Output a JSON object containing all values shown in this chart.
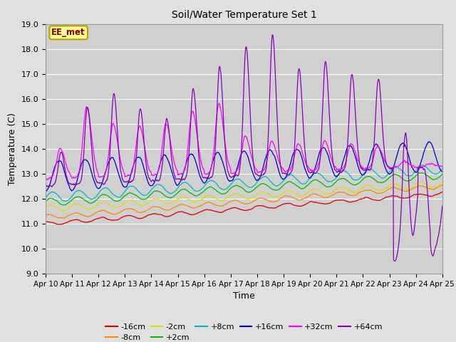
{
  "title": "Soil/Water Temperature Set 1",
  "xlabel": "Time",
  "ylabel": "Temperature (C)",
  "ylim": [
    9.0,
    19.0
  ],
  "yticks": [
    9.0,
    10.0,
    11.0,
    12.0,
    13.0,
    14.0,
    15.0,
    16.0,
    17.0,
    18.0,
    19.0
  ],
  "fig_bg_color": "#e0e0e0",
  "plot_bg_color": "#d0d0d0",
  "grid_color": "#ffffff",
  "annotation_text": "EE_met",
  "annotation_color": "#8b0000",
  "annotation_bg": "#ffff99",
  "annotation_border": "#b8a000",
  "series": [
    {
      "label": "-16cm",
      "color": "#dd0000"
    },
    {
      "label": "-8cm",
      "color": "#ff8800"
    },
    {
      "label": "-2cm",
      "color": "#dddd00"
    },
    {
      "label": "+2cm",
      "color": "#00bb00"
    },
    {
      "label": "+8cm",
      "color": "#00bbbb"
    },
    {
      "label": "+16cm",
      "color": "#0000cc"
    },
    {
      "label": "+32cm",
      "color": "#ff00ff"
    },
    {
      "label": "+64cm",
      "color": "#8800bb"
    }
  ],
  "xtick_labels": [
    "Apr 10",
    "Apr 11",
    "Apr 12",
    "Apr 13",
    "Apr 14",
    "Apr 15",
    "Apr 16",
    "Apr 17",
    "Apr 18",
    "Apr 19",
    "Apr 20",
    "Apr 21",
    "Apr 22",
    "Apr 23",
    "Apr 24",
    "Apr 25"
  ]
}
